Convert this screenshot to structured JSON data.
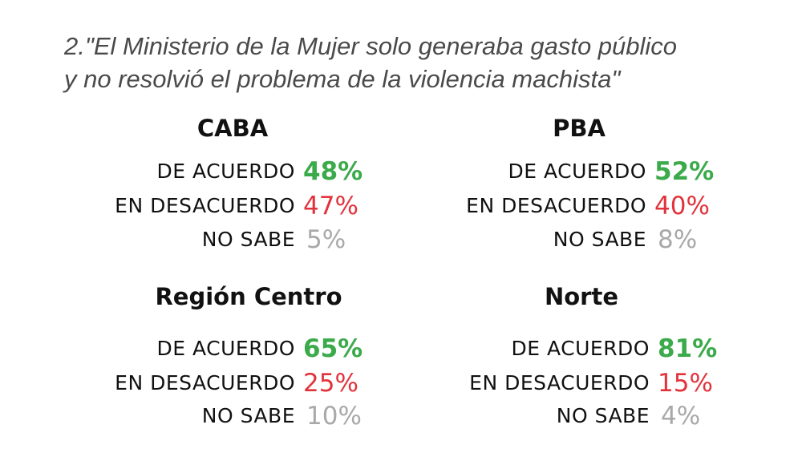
{
  "question": {
    "line1": "2.\"El Ministerio de la Mujer solo generaba gasto público",
    "line2": "y no resolvió el problema de la violencia machista\""
  },
  "labels": {
    "agree": "DE ACUERDO",
    "disagree": "EN DESACUERDO",
    "unknown": "NO SABE"
  },
  "colors": {
    "agree": "#3aaa4a",
    "disagree": "#e2333c",
    "unknown": "#a9a9a9"
  },
  "regions": [
    {
      "name": "CABA",
      "agree": "48%",
      "disagree": "47%",
      "unknown": "5%"
    },
    {
      "name": "PBA",
      "agree": "52%",
      "disagree": "40%",
      "unknown": "8%"
    },
    {
      "name": "Región Centro",
      "agree": "65%",
      "disagree": "25%",
      "unknown": "10%"
    },
    {
      "name": "Norte",
      "agree": "81%",
      "disagree": "15%",
      "unknown": "4%"
    }
  ]
}
